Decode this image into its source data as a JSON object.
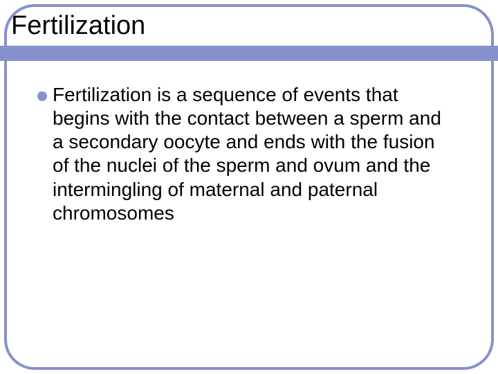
{
  "slide": {
    "title": "Fertilization",
    "bullet_text": "Fertilization is a sequence of events that begins with the contact between  a sperm and a secondary oocyte and ends with the fusion of the nuclei of the sperm and ovum and the intermingling of maternal and paternal chromosomes",
    "accent_color": "#8690ca",
    "title_color": "#000000",
    "body_color": "#000000",
    "background_color": "#ffffff",
    "title_fontsize": 38,
    "body_fontsize": 28,
    "border_width": 4,
    "border_radius": 44
  }
}
